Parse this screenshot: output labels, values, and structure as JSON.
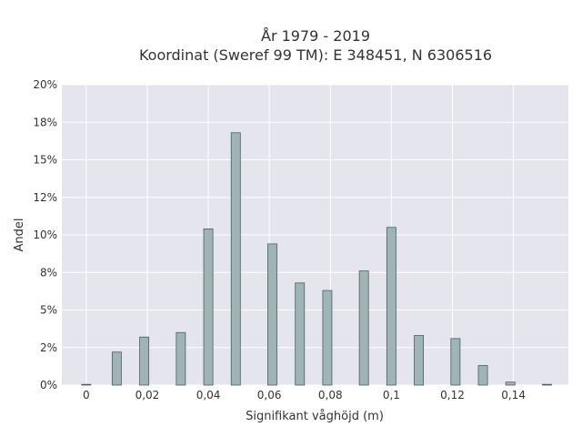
{
  "chart_data": {
    "type": "bar",
    "title_line1": "År 1979 - 2019",
    "title_line2": "Koordinat (Sweref 99 TM): E 348451, N 6306516",
    "xlabel": "Signifikant våghöjd (m)",
    "ylabel": "Andel",
    "xlim": [
      -0.008,
      0.158
    ],
    "ylim": [
      0,
      0.2
    ],
    "x_ticks": [
      0,
      0.02,
      0.04,
      0.06,
      0.08,
      0.1,
      0.12,
      0.14
    ],
    "x_tick_labels": [
      "0",
      "0,02",
      "0,04",
      "0,06",
      "0,08",
      "0,1",
      "0,12",
      "0,14"
    ],
    "y_ticks": [
      0,
      0.025,
      0.05,
      0.075,
      0.1,
      0.125,
      0.15,
      0.175,
      0.2
    ],
    "y_tick_labels": [
      "0%",
      "2%",
      "5%",
      "8%",
      "10%",
      "12%",
      "15%",
      "18%",
      "20%"
    ],
    "bar_width": 0.003,
    "x": [
      0,
      0.01,
      0.019,
      0.031,
      0.04,
      0.049,
      0.061,
      0.07,
      0.079,
      0.091,
      0.1,
      0.109,
      0.121,
      0.13,
      0.139,
      0.151
    ],
    "values": [
      0.0005,
      0.022,
      0.032,
      0.035,
      0.104,
      0.168,
      0.094,
      0.068,
      0.063,
      0.076,
      0.105,
      0.033,
      0.031,
      0.013,
      0.002,
      0.0005
    ],
    "bar_color": "#9fb5b5",
    "bar_edge_color": "#4a5f5f",
    "plot_bg": "#e5e5ee",
    "grid": true,
    "legend": "none"
  }
}
